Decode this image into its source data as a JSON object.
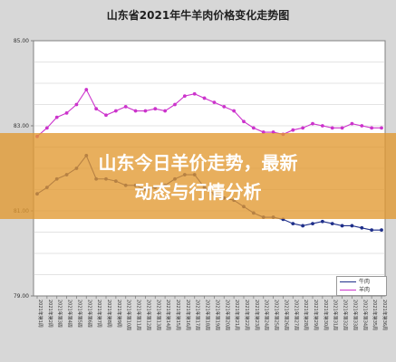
{
  "overlay": {
    "title_line1": "山东今日羊价走势，最新",
    "title_line2": "动态与行情分析"
  },
  "chart_data": {
    "type": "line",
    "title": "山东省2021年牛羊肉价格变化走势图",
    "ylim": [
      79.0,
      85.0
    ],
    "yticks": [
      "85.00",
      "83.00",
      "81.00",
      "79.00"
    ],
    "grid": true,
    "legend_position": "bottom-right",
    "series": [
      {
        "name": "牛肉",
        "color": "#1f2f8a",
        "values": [
          81.4,
          81.55,
          81.75,
          81.85,
          82.0,
          82.3,
          81.75,
          81.75,
          81.7,
          81.6,
          81.6,
          81.5,
          81.55,
          81.6,
          81.75,
          81.85,
          81.85,
          81.55,
          81.4,
          81.3,
          81.25,
          81.1,
          80.95,
          80.85,
          80.85,
          80.8,
          80.7,
          80.65,
          80.7,
          80.75,
          80.7,
          80.65,
          80.65,
          80.6,
          80.55,
          80.55
        ]
      },
      {
        "name": "羊肉",
        "color": "#cc33cc",
        "values": [
          82.75,
          82.95,
          83.2,
          83.3,
          83.5,
          83.85,
          83.4,
          83.25,
          83.35,
          83.45,
          83.35,
          83.35,
          83.4,
          83.35,
          83.5,
          83.7,
          83.75,
          83.65,
          83.55,
          83.45,
          83.35,
          83.1,
          82.95,
          82.85,
          82.85,
          82.8,
          82.9,
          82.95,
          83.05,
          83.0,
          82.95,
          82.95,
          83.05,
          83.0,
          82.95,
          82.95
        ]
      }
    ],
    "categories": [
      "2021年第1周",
      "2021年第2周",
      "2021年第3周",
      "2021年第4周",
      "2021年第5周",
      "2021年第6周",
      "2021年第7周",
      "2021年第8周",
      "2021年第9周",
      "2021年第10周",
      "2021年第11周",
      "2021年第12周",
      "2021年第13周",
      "2021年第14周",
      "2021年第15周",
      "2021年第16周",
      "2021年第17周",
      "2021年第18周",
      "2021年第19周",
      "2021年第20周",
      "2021年第21周",
      "2021年第22周",
      "2021年第23周",
      "2021年第24周",
      "2021年第25周",
      "2021年第26周",
      "2021年第27周",
      "2021年第28周",
      "2021年第29周",
      "2021年第30周",
      "2021年第31周",
      "2021年第32周",
      "2021年第33周",
      "2021年第34周",
      "2021年第35周",
      "2021年第36周"
    ]
  }
}
